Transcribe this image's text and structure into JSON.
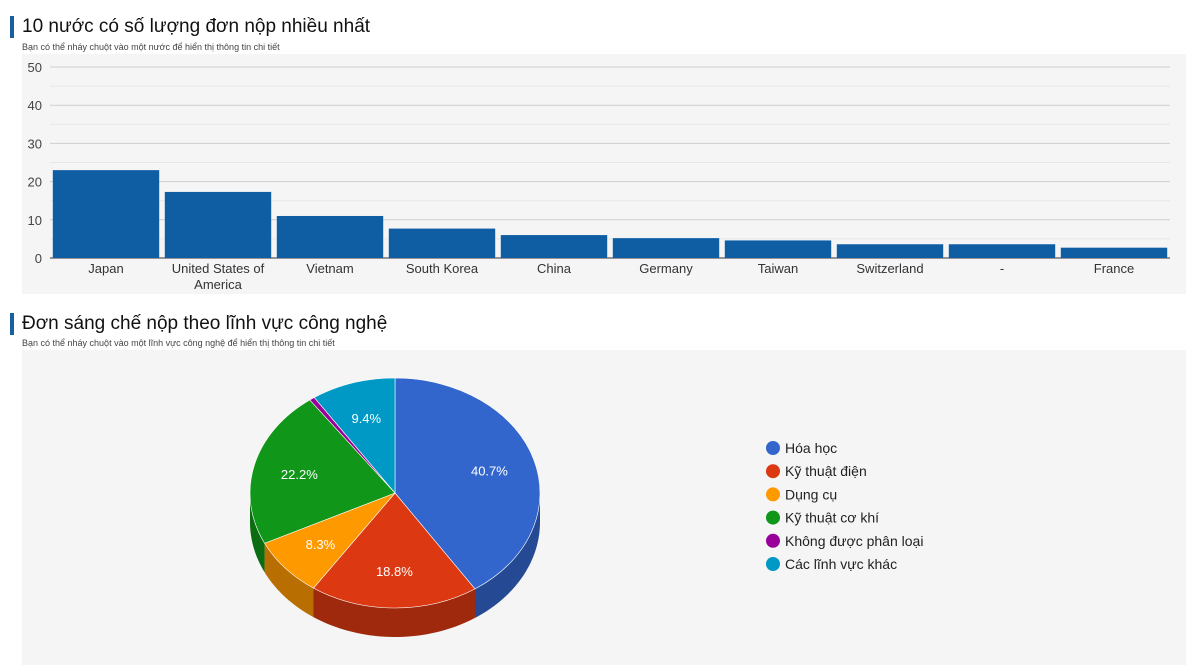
{
  "bar_section": {
    "title": "10 nước có số lượng đơn nộp nhiều nhất",
    "subtitle": "Bạn có thể nháy chuột vào một nước để hiển thị thông tin chi tiết"
  },
  "pie_section": {
    "title": "Đơn sáng chế nộp theo lĩnh vực công nghệ",
    "subtitle": "Bạn có thể nháy chuột vào một lĩnh vực công nghệ để hiển thị thông tin chi tiết"
  },
  "chart_data": [
    {
      "type": "bar",
      "categories": [
        "Japan",
        "United States of America",
        "Vietnam",
        "South Korea",
        "China",
        "Germany",
        "Taiwan",
        "Switzerland",
        "-",
        "France"
      ],
      "values": [
        23,
        17.3,
        11,
        7.7,
        6,
        5.2,
        4.6,
        3.6,
        3.6,
        2.7
      ],
      "ylim": [
        0,
        50
      ],
      "yticks": [
        0,
        10,
        20,
        30,
        40,
        50
      ],
      "grid": true,
      "color": "#0f5ea3"
    },
    {
      "type": "pie",
      "labels": [
        "Hóa học",
        "Kỹ thuật điện",
        "Dụng cụ",
        "Kỹ thuật cơ khí",
        "Không được phân loại",
        "Các lĩnh vực khác"
      ],
      "values": [
        40.7,
        18.8,
        8.3,
        22.2,
        0.6,
        9.4
      ],
      "value_labels": [
        "40.7%",
        "18.8%",
        "8.3%",
        "22.2%",
        "",
        "9.4%"
      ],
      "colors": [
        "#3366cc",
        "#dc3912",
        "#ff9900",
        "#109618",
        "#990099",
        "#0099c6"
      ],
      "legend_position": "right",
      "style": "3d"
    }
  ]
}
